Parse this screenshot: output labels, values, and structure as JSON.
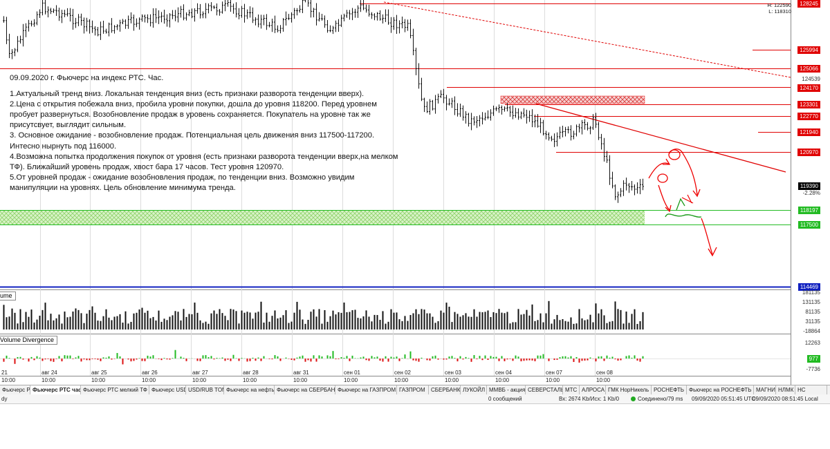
{
  "price_axis": {
    "high_label": "H: 122590",
    "low_label": "L: 118310",
    "levels": [
      {
        "value": "128245",
        "style": "red"
      },
      {
        "value": "125994",
        "style": "red"
      },
      {
        "value": "125066",
        "style": "red"
      },
      {
        "value": "124539",
        "style": "plain"
      },
      {
        "value": "124170",
        "style": "red"
      },
      {
        "value": "123301",
        "style": "red"
      },
      {
        "value": "122770",
        "style": "red"
      },
      {
        "value": "121940",
        "style": "red"
      },
      {
        "value": "120970",
        "style": "red"
      },
      {
        "value": "119390",
        "style": "black"
      },
      {
        "value": "-2.28%",
        "style": "plain"
      },
      {
        "value": "118197",
        "style": "green"
      },
      {
        "value": "117500",
        "style": "green"
      },
      {
        "value": "114469",
        "style": "blue"
      }
    ]
  },
  "annotation": {
    "title": "09.09.2020 г. Фьючерс на индекс РТС. Час.",
    "lines": [
      "1.Актуальный тренд вниз. Локальная тенденция вниз (есть признаки разворота тенденции вверх).",
      "2.Цена с открытия побежала вниз, пробила уровни покупки, дошла до уровня 118200. Перед уровнем",
      "пробует развернуться. Возобновление продаж в уровень сохраняется. Покупатель на уровне так же",
      "присутсвует, выглядит сильным.",
      "3. Основное ожидание - возобновление продаж. Потенциальная цель движения вниз 117500-117200.",
      "Интесно нырнуть под 116000.",
      "4.Возможна попытка продолжения покупок от уровня (есть признаки разворота тенденции вверх,на мелком",
      "ТФ). Ближайший уровень продаж, хвост бара 17 часов. Тест уровня 120970.",
      "5.От уровней продаж - ожидание возобновления продаж, по тенденции вниз. Возможно увидим",
      "манипуляции на уровнях.  Цель обновление минимума тренда."
    ]
  },
  "volume_panel": {
    "label": "ume",
    "axis": [
      "181135",
      "131135",
      "81135",
      "31135",
      "-18864"
    ]
  },
  "divergence_panel": {
    "label": "Volume Divergence",
    "axis": [
      "12263",
      "977",
      "-7736"
    ]
  },
  "time_axis": {
    "dates": [
      {
        "label": "21",
        "time": "10:00"
      },
      {
        "label": "авг 24",
        "time": "10:00"
      },
      {
        "label": "авг 25",
        "time": "10:00"
      },
      {
        "label": "авг 26",
        "time": "10:00"
      },
      {
        "label": "авг 27",
        "time": "10:00"
      },
      {
        "label": "авг 28",
        "time": "10:00"
      },
      {
        "label": "авг 31",
        "time": "10:00"
      },
      {
        "label": "сен 01",
        "time": "10:00"
      },
      {
        "label": "сен 02",
        "time": "10:00"
      },
      {
        "label": "сен 03",
        "time": "10:00"
      },
      {
        "label": "сен 04",
        "time": "10:00"
      },
      {
        "label": "сен 07",
        "time": "10:00"
      },
      {
        "label": "сен 08",
        "time": "10:00"
      }
    ]
  },
  "tabs": [
    "Фьючерс РТС",
    "Фьючерс РТС час",
    "Фьючерс РТС мелкий ТФ",
    "Фьючерс USD",
    "USD/RUB TOM",
    "Фьючерс на нефть",
    "Фьючерс на СБЕРБАНК",
    "Фьючерс на ГАЗПРОМ",
    "ГАЗПРОМ",
    "СБЕРБАНК",
    "ЛУКОЙЛ",
    "ММВБ - акция",
    "СЕВЕРСТАЛЬ",
    "МТС",
    "АЛРОСА",
    "ГМК НорНикель",
    "РОСНЕФТЬ",
    "Фьючерс на РОСНЕФТЬ",
    "МАГНИТ",
    "НЛМК",
    "НС"
  ],
  "active_tab_index": 1,
  "status_bar": {
    "ready": "dy",
    "messages": "0 сообщений",
    "traffic": "Вх: 2674 Kb/Исх: 1 Kb/0",
    "connection": "Соединено/79 ms",
    "utc_time": "09/09/2020 05:51:45 UTC",
    "local_time": "09/09/2020 08:51:45 Local"
  },
  "colors": {
    "candle": "#111111",
    "resistance": "#e00000",
    "support": "#22bb22",
    "low_line": "#1020c0",
    "grid": "#dcdcdc"
  }
}
